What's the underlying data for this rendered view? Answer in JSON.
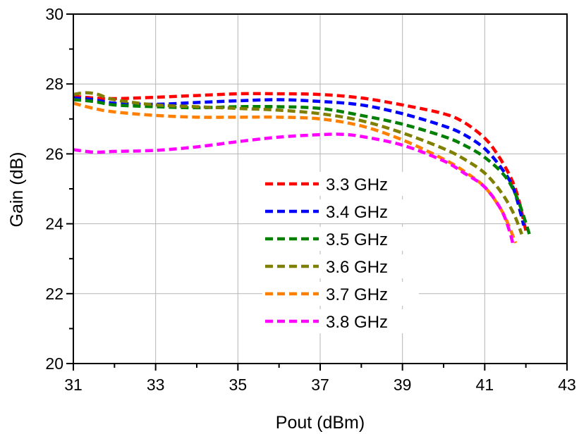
{
  "chart_data": {
    "type": "line",
    "title": "",
    "xlabel": "Pout (dBm)",
    "ylabel": "Gain (dB)",
    "xlim": [
      31,
      43
    ],
    "ylim": [
      20,
      30
    ],
    "xticks": [
      "31",
      "33",
      "35",
      "37",
      "39",
      "41",
      "43"
    ],
    "yticks": [
      "20",
      "22",
      "24",
      "26",
      "28",
      "30"
    ],
    "grid": true,
    "legend_position": "center",
    "series": [
      {
        "name": "3.3 GHz",
        "color": "#ff0000",
        "x": [
          31.0,
          31.5,
          32.0,
          33.0,
          34.0,
          35.0,
          36.0,
          37.0,
          38.0,
          39.0,
          40.0,
          40.5,
          41.0,
          41.3,
          41.6,
          41.8,
          42.0
        ],
        "y": [
          27.65,
          27.6,
          27.58,
          27.62,
          27.67,
          27.72,
          27.72,
          27.7,
          27.6,
          27.4,
          27.15,
          26.9,
          26.45,
          26.0,
          25.4,
          24.8,
          23.8
        ]
      },
      {
        "name": "3.4 GHz",
        "color": "#0000ff",
        "x": [
          31.0,
          31.5,
          32.0,
          33.0,
          34.0,
          35.0,
          36.0,
          37.0,
          38.0,
          39.0,
          40.0,
          40.5,
          41.0,
          41.4,
          41.7,
          41.95
        ],
        "y": [
          27.6,
          27.55,
          27.45,
          27.42,
          27.47,
          27.52,
          27.55,
          27.5,
          27.4,
          27.15,
          26.8,
          26.55,
          26.15,
          25.6,
          25.0,
          23.95
        ]
      },
      {
        "name": "3.5 GHz",
        "color": "#008000",
        "x": [
          31.0,
          31.5,
          32.0,
          33.0,
          34.0,
          35.0,
          36.0,
          37.0,
          38.0,
          39.0,
          40.0,
          40.5,
          41.0,
          41.5,
          41.8,
          42.1
        ],
        "y": [
          27.55,
          27.5,
          27.4,
          27.35,
          27.32,
          27.35,
          27.35,
          27.3,
          27.1,
          26.85,
          26.5,
          26.25,
          25.9,
          25.35,
          24.7,
          23.65
        ]
      },
      {
        "name": "3.6 GHz",
        "color": "#808000",
        "x": [
          31.0,
          31.3,
          31.6,
          32.0,
          33.0,
          34.0,
          35.0,
          36.0,
          37.0,
          38.0,
          39.0,
          40.0,
          40.5,
          41.0,
          41.4,
          41.7,
          41.9
        ],
        "y": [
          27.7,
          27.75,
          27.7,
          27.55,
          27.4,
          27.35,
          27.3,
          27.25,
          27.15,
          26.95,
          26.6,
          26.15,
          25.85,
          25.45,
          24.9,
          24.3,
          23.7
        ]
      },
      {
        "name": "3.7 GHz",
        "color": "#ff8000",
        "x": [
          31.0,
          31.5,
          32.0,
          33.0,
          34.0,
          35.0,
          36.0,
          37.0,
          38.0,
          39.0,
          40.0,
          40.5,
          41.0,
          41.4,
          41.6,
          41.75
        ],
        "y": [
          27.45,
          27.3,
          27.2,
          27.1,
          27.05,
          27.05,
          27.05,
          27.0,
          26.8,
          26.4,
          25.85,
          25.5,
          25.05,
          24.4,
          23.9,
          23.45
        ]
      },
      {
        "name": "3.8 GHz",
        "color": "#ff00ff",
        "x": [
          31.0,
          31.5,
          32.0,
          33.0,
          34.0,
          35.0,
          36.0,
          37.0,
          37.5,
          38.0,
          39.0,
          40.0,
          40.5,
          41.0,
          41.4,
          41.6,
          41.7
        ],
        "y": [
          26.12,
          26.05,
          26.07,
          26.1,
          26.2,
          26.35,
          26.48,
          26.55,
          26.56,
          26.5,
          26.25,
          25.8,
          25.45,
          25.05,
          24.4,
          23.8,
          23.35
        ]
      }
    ]
  }
}
